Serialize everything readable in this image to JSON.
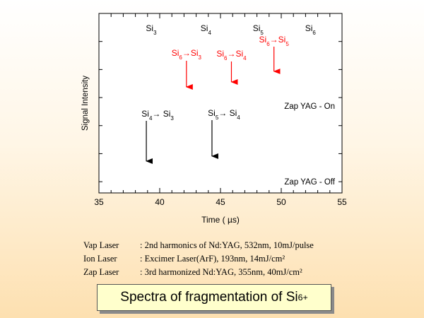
{
  "chart_data": {
    "type": "line",
    "title": "",
    "xlabel": "Time ( µs)",
    "ylabel": "Signal Intensity",
    "xlim": [
      35,
      55
    ],
    "x_ticks": [
      "35",
      "40",
      "45",
      "50",
      "55"
    ],
    "grid": false,
    "peak_labels": [
      {
        "base": "Si",
        "sub": "3",
        "x": 39.3
      },
      {
        "base": "Si",
        "sub": "4",
        "x": 43.8
      },
      {
        "base": "Si",
        "sub": "5",
        "x": 48.1
      },
      {
        "base": "Si",
        "sub": "6",
        "x": 52.4
      }
    ],
    "traces": [
      {
        "name": "Zap YAG - On",
        "color": "#ff0000",
        "arrows": [
          {
            "from_sub": "6",
            "to_sub": "3",
            "x": 42.2
          },
          {
            "from_sub": "6",
            "to_sub": "4",
            "x": 45.9
          },
          {
            "from_sub": "6",
            "to_sub": "5",
            "x": 49.4
          }
        ]
      },
      {
        "name": "Zap YAG - Off",
        "color": "#000000",
        "arrows": [
          {
            "from_sub": "4",
            "to_sub": "3",
            "x": 38.9
          },
          {
            "from_sub": "5",
            "to_sub": "4",
            "x": 44.3
          }
        ]
      }
    ]
  },
  "notes": [
    {
      "key": "Vap Laser",
      "value": "2nd harmonics of Nd:YAG, 532nm, 10mJ/pulse"
    },
    {
      "key": "Ion Laser",
      "value": "Excimer Laser(ArF), 193nm, 14mJ/cm²"
    },
    {
      "key": "Zap Laser",
      "value": "3rd harmonized Nd:YAG, 355nm, 40mJ/cm²"
    }
  ],
  "caption": {
    "text": "Spectra of fragmentation of Si",
    "sub": "6",
    "sup": "+"
  }
}
